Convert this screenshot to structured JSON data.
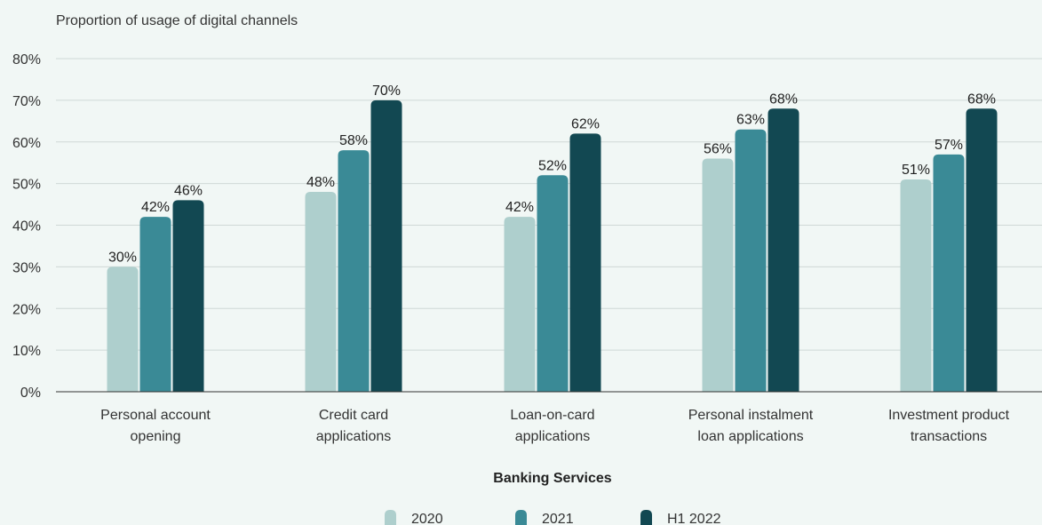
{
  "chart_data": {
    "type": "bar",
    "title": "",
    "ylabel": "Proportion of usage of digital channels",
    "xlabel": "Banking Services",
    "ylim": [
      0,
      80
    ],
    "yticks": [
      "0%",
      "10%",
      "20%",
      "30%",
      "40%",
      "50%",
      "60%",
      "70%",
      "80%"
    ],
    "ytick_values": [
      0,
      10,
      20,
      30,
      40,
      50,
      60,
      70,
      80
    ],
    "grid": true,
    "legend_position": "bottom",
    "categories": [
      [
        "Personal account",
        "opening"
      ],
      [
        "Credit card",
        "applications"
      ],
      [
        "Loan-on-card",
        "applications"
      ],
      [
        "Personal instalment",
        "loan applications"
      ],
      [
        "Investment product",
        "transactions"
      ]
    ],
    "series": [
      {
        "name": "2020",
        "color": "#aecfcd",
        "values": [
          30,
          48,
          42,
          56,
          51
        ],
        "labels": [
          "30%",
          "48%",
          "42%",
          "56%",
          "51%"
        ]
      },
      {
        "name": "2021",
        "color": "#3a8a96",
        "values": [
          42,
          58,
          52,
          63,
          57
        ],
        "labels": [
          "42%",
          "58%",
          "52%",
          "63%",
          "57%"
        ]
      },
      {
        "name": "H1 2022",
        "color": "#124852",
        "values": [
          46,
          70,
          62,
          68,
          68
        ],
        "labels": [
          "46%",
          "70%",
          "62%",
          "68%",
          "68%"
        ]
      }
    ]
  }
}
